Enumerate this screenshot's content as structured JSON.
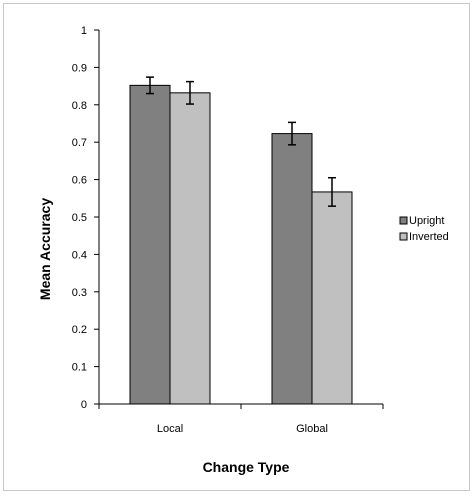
{
  "chart_data": {
    "type": "bar",
    "title": "",
    "xlabel": "Change Type",
    "ylabel": "Mean Accuracy",
    "categories": [
      "Local",
      "Global"
    ],
    "series": [
      {
        "name": "Upright",
        "values": [
          0.852,
          0.723
        ],
        "errors": [
          0.022,
          0.03
        ],
        "color": "#808080"
      },
      {
        "name": "Inverted",
        "values": [
          0.832,
          0.567
        ],
        "errors": [
          0.03,
          0.038
        ],
        "color": "#c0c0c0"
      }
    ],
    "ylim": [
      0,
      1
    ],
    "yticks": [
      "0",
      "0.1",
      "0.2",
      "0.3",
      "0.4",
      "0.5",
      "0.6",
      "0.7",
      "0.8",
      "0.9",
      "1"
    ],
    "grid": false,
    "legend_position": "right"
  }
}
